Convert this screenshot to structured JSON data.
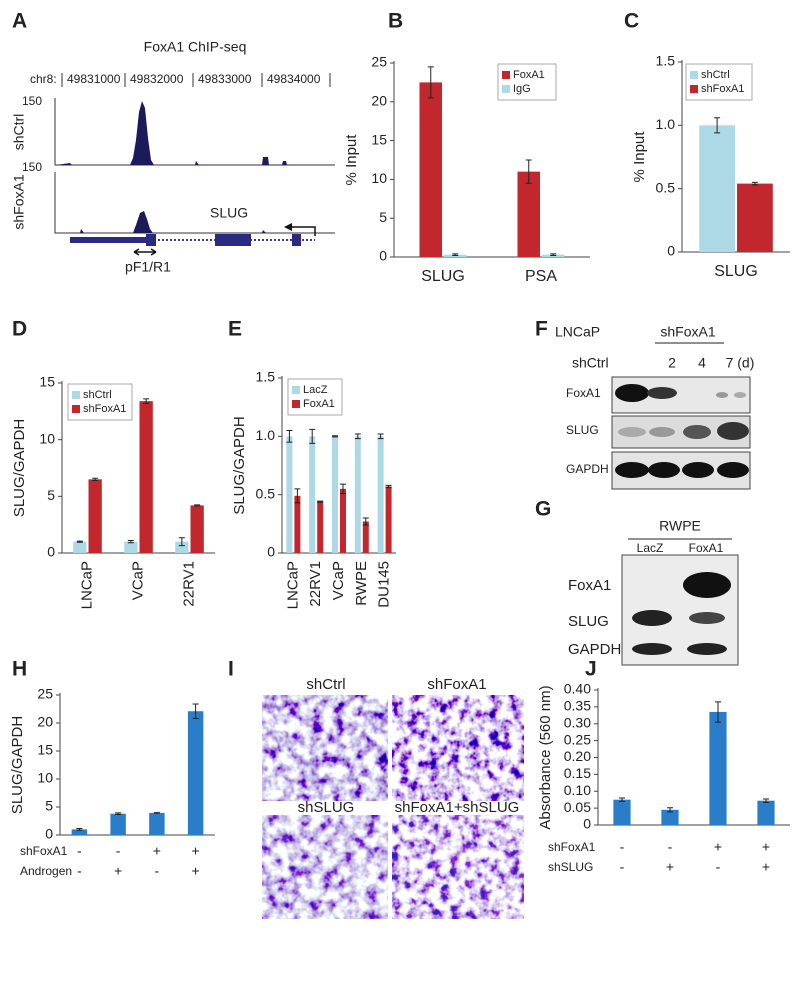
{
  "panel_labels": [
    "A",
    "B",
    "C",
    "D",
    "E",
    "F",
    "G",
    "H",
    "I",
    "J"
  ],
  "panel_a": {
    "title": "FoxA1 ChIP-seq",
    "chrom": "chr8:",
    "coordinates": [
      49831000,
      49832000,
      49833000,
      49834000
    ],
    "tracks": [
      {
        "name": "shCtrl",
        "scale": 150
      },
      {
        "name": "shFoxA1",
        "scale": 150
      }
    ],
    "gene": "SLUG",
    "primer": "pF1/R1"
  },
  "panel_f": {
    "cell_line": "LNCaP",
    "group": "shFoxA1",
    "lanes": [
      "shCtrl",
      "2",
      "4",
      "7 (d)"
    ],
    "rows": [
      "FoxA1",
      "SLUG",
      "GAPDH"
    ]
  },
  "panel_g": {
    "cell_line": "RWPE",
    "lanes": [
      "LacZ",
      "FoxA1"
    ],
    "rows": [
      "FoxA1",
      "SLUG",
      "GAPDH"
    ]
  },
  "panel_i": {
    "images": [
      "shCtrl",
      "shFoxA1",
      "shSLUG",
      "shFoxA1+shSLUG"
    ]
  },
  "chart_data": [
    {
      "type": "bar",
      "ylabel": "% Input",
      "categories": [
        "SLUG",
        "PSA"
      ],
      "legend": "upper right",
      "series": [
        {
          "name": "FoxA1",
          "color": "#c1272d",
          "values": [
            22.5,
            11
          ],
          "errors": [
            2,
            1.5
          ]
        },
        {
          "name": "IgG",
          "color": "#add8e6",
          "values": [
            0.3,
            0.3
          ],
          "errors": [
            0.1,
            0.1
          ]
        }
      ],
      "ylim": [
        0,
        25
      ],
      "yticks": [
        0,
        5,
        10,
        15,
        20,
        25
      ]
    },
    {
      "type": "bar",
      "ylabel": "% Input",
      "categories": [
        "SLUG"
      ],
      "legend": "upper left",
      "series": [
        {
          "name": "shCtrl",
          "color": "#add8e6",
          "values": [
            1.0
          ],
          "errors": [
            0.06
          ]
        },
        {
          "name": "shFoxA1",
          "color": "#c1272d",
          "values": [
            0.54
          ],
          "errors": [
            0.01
          ]
        }
      ],
      "ylim": [
        0,
        1.5
      ],
      "yticks": [
        0,
        0.5,
        {
          "value": 1,
          "label": "1.0"
        },
        1.5
      ]
    },
    {
      "type": "bar",
      "ylabel": "SLUG/GAPDH",
      "categories": [
        "LNCaP",
        "VCaP",
        "22RV1"
      ],
      "legend": "upper left",
      "series": [
        {
          "name": "shCtrl",
          "color": "#add8e6",
          "values": [
            1,
            1,
            1
          ],
          "errors": [
            0.05,
            0.1,
            0.35
          ]
        },
        {
          "name": "shFoxA1",
          "color": "#c1272d",
          "values": [
            6.5,
            13.4,
            4.2
          ],
          "errors": [
            0.1,
            0.2,
            0.05
          ]
        }
      ],
      "ylim": [
        0,
        15
      ],
      "yticks": [
        0,
        5,
        10,
        15
      ]
    },
    {
      "type": "bar",
      "ylabel": "SLUG/GAPDH",
      "categories": [
        "LNCaP",
        "22RV1",
        "VCaP",
        "RWPE",
        "DU145"
      ],
      "legend": "upper left",
      "series": [
        {
          "name": "LacZ",
          "color": "#add8e6",
          "values": [
            1,
            1,
            1,
            1,
            1
          ],
          "errors": [
            0.05,
            0.06,
            0.005,
            0.02,
            0.02
          ]
        },
        {
          "name": "FoxA1",
          "color": "#c1272d",
          "values": [
            0.49,
            0.44,
            0.55,
            0.27,
            0.57
          ],
          "errors": [
            0.06,
            0.005,
            0.04,
            0.03,
            0.01
          ]
        }
      ],
      "ylim": [
        0,
        1.5
      ],
      "yticks": [
        0,
        0.5,
        {
          "value": 1,
          "label": "1.0"
        },
        1.5
      ]
    },
    {
      "type": "bar",
      "ylabel": "SLUG/GAPDH",
      "color": "#2a7dc9",
      "values": [
        1,
        3.8,
        3.95,
        22.1
      ],
      "errors": [
        0.15,
        0.15,
        0.05,
        1.3
      ],
      "treatments": [
        {
          "name": "shFoxA1",
          "signs": [
            "-",
            "-",
            "+",
            "+"
          ]
        },
        {
          "name": "Androgen",
          "signs": [
            "-",
            "+",
            "-",
            "+"
          ]
        }
      ],
      "ylim": [
        0,
        25
      ],
      "yticks": [
        0,
        5,
        10,
        15,
        20,
        25
      ]
    },
    {
      "type": "bar",
      "ylabel": "Absorbance (560 nm)",
      "color": "#2a7dc9",
      "values": [
        0.075,
        0.045,
        0.335,
        0.072
      ],
      "errors": [
        0.005,
        0.006,
        0.03,
        0.005
      ],
      "treatments": [
        {
          "name": "shFoxA1",
          "signs": [
            "-",
            "-",
            "+",
            "+"
          ]
        },
        {
          "name": "shSLUG",
          "signs": [
            "-",
            "+",
            "-",
            "+"
          ]
        }
      ],
      "ylim": [
        0,
        0.4
      ],
      "yticks": [
        0,
        0.05,
        {
          "value": 0.1,
          "label": "0.10"
        },
        0.15,
        {
          "value": 0.2,
          "label": "0.20"
        },
        0.25,
        {
          "value": 0.3,
          "label": "0.30"
        },
        0.35,
        {
          "value": 0.4,
          "label": "0.40"
        }
      ]
    }
  ]
}
